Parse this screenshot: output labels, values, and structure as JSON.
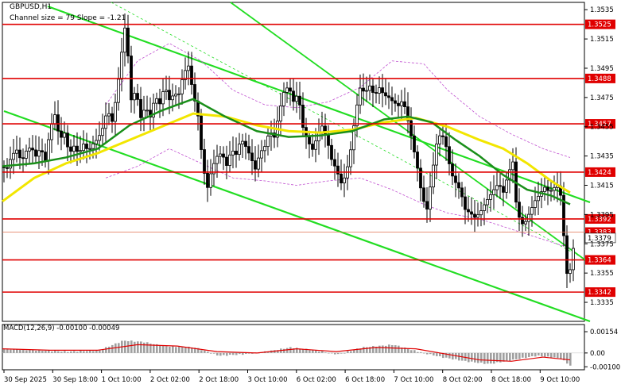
{
  "window": {
    "title": "GBPUSD,H1",
    "subtitle": "Channel size = 79 Slope = -1.21",
    "macd_label": "MACD(12,26,9) -0.00100 -0.00049"
  },
  "colors": {
    "level_line": "#e00000",
    "channel_line": "#22dd22",
    "ma_fast": "#1a8f1a",
    "ma_slow": "#f2e600",
    "candle": "#000000",
    "envelope": "#c050d0",
    "macd_hist": "#a0a0a0",
    "macd_signal": "#e00000"
  },
  "chart_data": {
    "type": "candlestick",
    "ylim": [
      1.3322,
      1.354
    ],
    "price_axis_ticks": [
      "1.3535",
      "1.3515",
      "1.3495",
      "1.3475",
      "1.3455",
      "1.3435",
      "1.3415",
      "1.3395",
      "1.3375",
      "1.3355",
      "1.3335"
    ],
    "x_tick_labels": [
      "30 Sep 2025",
      "30 Sep 18:00",
      "1 Oct 10:00",
      "2 Oct 02:00",
      "2 Oct 18:00",
      "3 Oct 10:00",
      "6 Oct 02:00",
      "6 Oct 18:00",
      "7 Oct 10:00",
      "8 Oct 02:00",
      "8 Oct 18:00",
      "9 Oct 10:00"
    ],
    "levels": [
      {
        "value": 1.3525,
        "label": "1.3525"
      },
      {
        "value": 1.3488,
        "label": "1.3488"
      },
      {
        "value": 1.3457,
        "label": "1.3457"
      },
      {
        "value": 1.3424,
        "label": "1.3424"
      },
      {
        "value": 1.3392,
        "label": "1.3392"
      },
      {
        "value": 1.3364,
        "label": "1.3364"
      },
      {
        "value": 1.3342,
        "label": "1.3342"
      }
    ],
    "bid_line": {
      "value": 1.3383,
      "label": "1.3383"
    },
    "current_price": {
      "value": 1.3379,
      "label": "1.3379"
    },
    "close_path": [
      [
        0,
        1.3428
      ],
      [
        6,
        1.3425
      ],
      [
        12,
        1.3432
      ],
      [
        18,
        1.3436
      ],
      [
        24,
        1.343
      ],
      [
        30,
        1.344
      ],
      [
        36,
        1.3445
      ],
      [
        42,
        1.3438
      ],
      [
        48,
        1.3442
      ],
      [
        54,
        1.343
      ],
      [
        60,
        1.345
      ],
      [
        66,
        1.346
      ],
      [
        72,
        1.3445
      ],
      [
        78,
        1.3452
      ],
      [
        84,
        1.344
      ],
      [
        90,
        1.3445
      ],
      [
        96,
        1.3438
      ],
      [
        102,
        1.3442
      ],
      [
        108,
        1.3435
      ],
      [
        114,
        1.344
      ],
      [
        120,
        1.3445
      ],
      [
        126,
        1.3455
      ],
      [
        132,
        1.347
      ],
      [
        138,
        1.3462
      ],
      [
        144,
        1.348
      ],
      [
        150,
        1.3505
      ],
      [
        154,
        1.352
      ],
      [
        158,
        1.35
      ],
      [
        162,
        1.347
      ],
      [
        168,
        1.3478
      ],
      [
        174,
        1.3462
      ],
      [
        180,
        1.3472
      ],
      [
        186,
        1.3465
      ],
      [
        192,
        1.3478
      ],
      [
        198,
        1.347
      ],
      [
        204,
        1.348
      ],
      [
        210,
        1.347
      ],
      [
        216,
        1.3475
      ],
      [
        222,
        1.3478
      ],
      [
        228,
        1.3495
      ],
      [
        234,
        1.35
      ],
      [
        240,
        1.348
      ],
      [
        246,
        1.3462
      ],
      [
        252,
        1.3425
      ],
      [
        258,
        1.341
      ],
      [
        264,
        1.3425
      ],
      [
        270,
        1.3435
      ],
      [
        276,
        1.344
      ],
      [
        282,
        1.3432
      ],
      [
        288,
        1.3442
      ],
      [
        294,
        1.3436
      ],
      [
        300,
        1.3444
      ],
      [
        306,
        1.3438
      ],
      [
        312,
        1.3432
      ],
      [
        318,
        1.3426
      ],
      [
        324,
        1.344
      ],
      [
        330,
        1.3445
      ],
      [
        336,
        1.3455
      ],
      [
        342,
        1.3448
      ],
      [
        348,
        1.3462
      ],
      [
        354,
        1.3475
      ],
      [
        360,
        1.348
      ],
      [
        366,
        1.3472
      ],
      [
        372,
        1.348
      ],
      [
        378,
        1.3458
      ],
      [
        384,
        1.3448
      ],
      [
        390,
        1.344
      ],
      [
        396,
        1.3446
      ],
      [
        402,
        1.3452
      ],
      [
        408,
        1.3444
      ],
      [
        414,
        1.3432
      ],
      [
        420,
        1.3428
      ],
      [
        426,
        1.342
      ],
      [
        432,
        1.3425
      ],
      [
        438,
        1.344
      ],
      [
        444,
        1.3462
      ],
      [
        450,
        1.3478
      ],
      [
        456,
        1.3475
      ],
      [
        462,
        1.3482
      ],
      [
        468,
        1.3478
      ],
      [
        474,
        1.3485
      ],
      [
        480,
        1.348
      ],
      [
        486,
        1.3476
      ],
      [
        492,
        1.347
      ],
      [
        498,
        1.3466
      ],
      [
        504,
        1.347
      ],
      [
        510,
        1.3458
      ],
      [
        516,
        1.3445
      ],
      [
        522,
        1.343
      ],
      [
        528,
        1.341
      ],
      [
        534,
        1.34
      ],
      [
        540,
        1.342
      ],
      [
        546,
        1.344
      ],
      [
        552,
        1.3448
      ],
      [
        558,
        1.344
      ],
      [
        564,
        1.3425
      ],
      [
        570,
        1.342
      ],
      [
        576,
        1.3415
      ],
      [
        582,
        1.34
      ],
      [
        588,
        1.3395
      ],
      [
        594,
        1.339
      ],
      [
        600,
        1.3392
      ],
      [
        606,
        1.34
      ],
      [
        612,
        1.3408
      ],
      [
        618,
        1.3415
      ],
      [
        624,
        1.342
      ],
      [
        630,
        1.3412
      ],
      [
        636,
        1.3422
      ],
      [
        642,
        1.3428
      ],
      [
        646,
        1.34
      ],
      [
        652,
        1.3385
      ],
      [
        658,
        1.339
      ],
      [
        664,
        1.34
      ],
      [
        670,
        1.3408
      ],
      [
        676,
        1.3412
      ],
      [
        682,
        1.3414
      ],
      [
        688,
        1.3408
      ],
      [
        694,
        1.341
      ],
      [
        700,
        1.3412
      ],
      [
        704,
        1.34
      ],
      [
        708,
        1.336
      ],
      [
        712,
        1.3352
      ],
      [
        716,
        1.3368
      ],
      [
        719,
        1.3379
      ]
    ],
    "ma_fast": [
      [
        0,
        1.3428
      ],
      [
        40,
        1.343
      ],
      [
        80,
        1.3434
      ],
      [
        120,
        1.344
      ],
      [
        160,
        1.3456
      ],
      [
        200,
        1.3466
      ],
      [
        240,
        1.3474
      ],
      [
        280,
        1.3462
      ],
      [
        320,
        1.3452
      ],
      [
        360,
        1.3448
      ],
      [
        400,
        1.3449
      ],
      [
        440,
        1.3452
      ],
      [
        480,
        1.346
      ],
      [
        510,
        1.3462
      ],
      [
        540,
        1.3458
      ],
      [
        570,
        1.3446
      ],
      [
        600,
        1.3435
      ],
      [
        630,
        1.3422
      ],
      [
        660,
        1.3412
      ],
      [
        690,
        1.3408
      ],
      [
        714,
        1.3402
      ]
    ],
    "ma_slow": [
      [
        0,
        1.3404
      ],
      [
        40,
        1.342
      ],
      [
        80,
        1.343
      ],
      [
        120,
        1.3437
      ],
      [
        160,
        1.3446
      ],
      [
        200,
        1.3455
      ],
      [
        240,
        1.3464
      ],
      [
        280,
        1.3462
      ],
      [
        320,
        1.3456
      ],
      [
        360,
        1.3452
      ],
      [
        400,
        1.3451
      ],
      [
        440,
        1.3453
      ],
      [
        480,
        1.3458
      ],
      [
        520,
        1.3461
      ],
      [
        560,
        1.3455
      ],
      [
        600,
        1.3446
      ],
      [
        630,
        1.344
      ],
      [
        660,
        1.343
      ],
      [
        690,
        1.3418
      ],
      [
        714,
        1.341
      ]
    ],
    "envelope_upper": [
      [
        130,
        1.347
      ],
      [
        170,
        1.35
      ],
      [
        210,
        1.3512
      ],
      [
        250,
        1.35
      ],
      [
        290,
        1.348
      ],
      [
        330,
        1.347
      ],
      [
        370,
        1.3468
      ],
      [
        410,
        1.3472
      ],
      [
        450,
        1.3482
      ],
      [
        490,
        1.35
      ],
      [
        530,
        1.3498
      ],
      [
        560,
        1.348
      ],
      [
        600,
        1.3462
      ],
      [
        640,
        1.345
      ],
      [
        680,
        1.344
      ],
      [
        714,
        1.3434
      ]
    ],
    "envelope_lower": [
      [
        130,
        1.342
      ],
      [
        170,
        1.3428
      ],
      [
        210,
        1.344
      ],
      [
        250,
        1.343
      ],
      [
        290,
        1.342
      ],
      [
        330,
        1.3418
      ],
      [
        370,
        1.3415
      ],
      [
        410,
        1.3418
      ],
      [
        450,
        1.342
      ],
      [
        490,
        1.3412
      ],
      [
        530,
        1.3402
      ],
      [
        560,
        1.3396
      ],
      [
        600,
        1.3392
      ],
      [
        640,
        1.3385
      ],
      [
        680,
        1.3378
      ],
      [
        714,
        1.3372
      ]
    ],
    "macd": {
      "label": "MACD(12,26,9) -0.00100 -0.00049",
      "ylim": [
        -0.0011,
        0.0016
      ],
      "ticks": [
        "0.00154",
        "0.00",
        "-0.00100"
      ],
      "hist_path": [
        [
          0,
          0.0003
        ],
        [
          40,
          0.0002
        ],
        [
          80,
          0.0001
        ],
        [
          120,
          0.0002
        ],
        [
          150,
          0.0009
        ],
        [
          175,
          0.0008
        ],
        [
          200,
          0.0005
        ],
        [
          240,
          0.0004
        ],
        [
          270,
          -0.0002
        ],
        [
          300,
          -0.0001
        ],
        [
          330,
          0.0001
        ],
        [
          360,
          0.0004
        ],
        [
          390,
          0.0002
        ],
        [
          420,
          -0.0001
        ],
        [
          450,
          0.0004
        ],
        [
          490,
          0.0006
        ],
        [
          520,
          0.0001
        ],
        [
          550,
          -0.0003
        ],
        [
          580,
          -0.0006
        ],
        [
          610,
          -0.0008
        ],
        [
          640,
          -0.0005
        ],
        [
          670,
          -0.0002
        ],
        [
          700,
          -0.0004
        ],
        [
          714,
          -0.001
        ]
      ],
      "signal_path": [
        [
          0,
          0.0003
        ],
        [
          60,
          0.0002
        ],
        [
          120,
          0.0002
        ],
        [
          170,
          0.0006
        ],
        [
          220,
          0.0005
        ],
        [
          270,
          0.0001
        ],
        [
          320,
          0.0
        ],
        [
          370,
          0.0003
        ],
        [
          420,
          0.0001
        ],
        [
          470,
          0.0004
        ],
        [
          520,
          0.0003
        ],
        [
          560,
          -0.0001
        ],
        [
          600,
          -0.0005
        ],
        [
          640,
          -0.0006
        ],
        [
          680,
          -0.0003
        ],
        [
          714,
          -0.0005
        ]
      ]
    }
  }
}
